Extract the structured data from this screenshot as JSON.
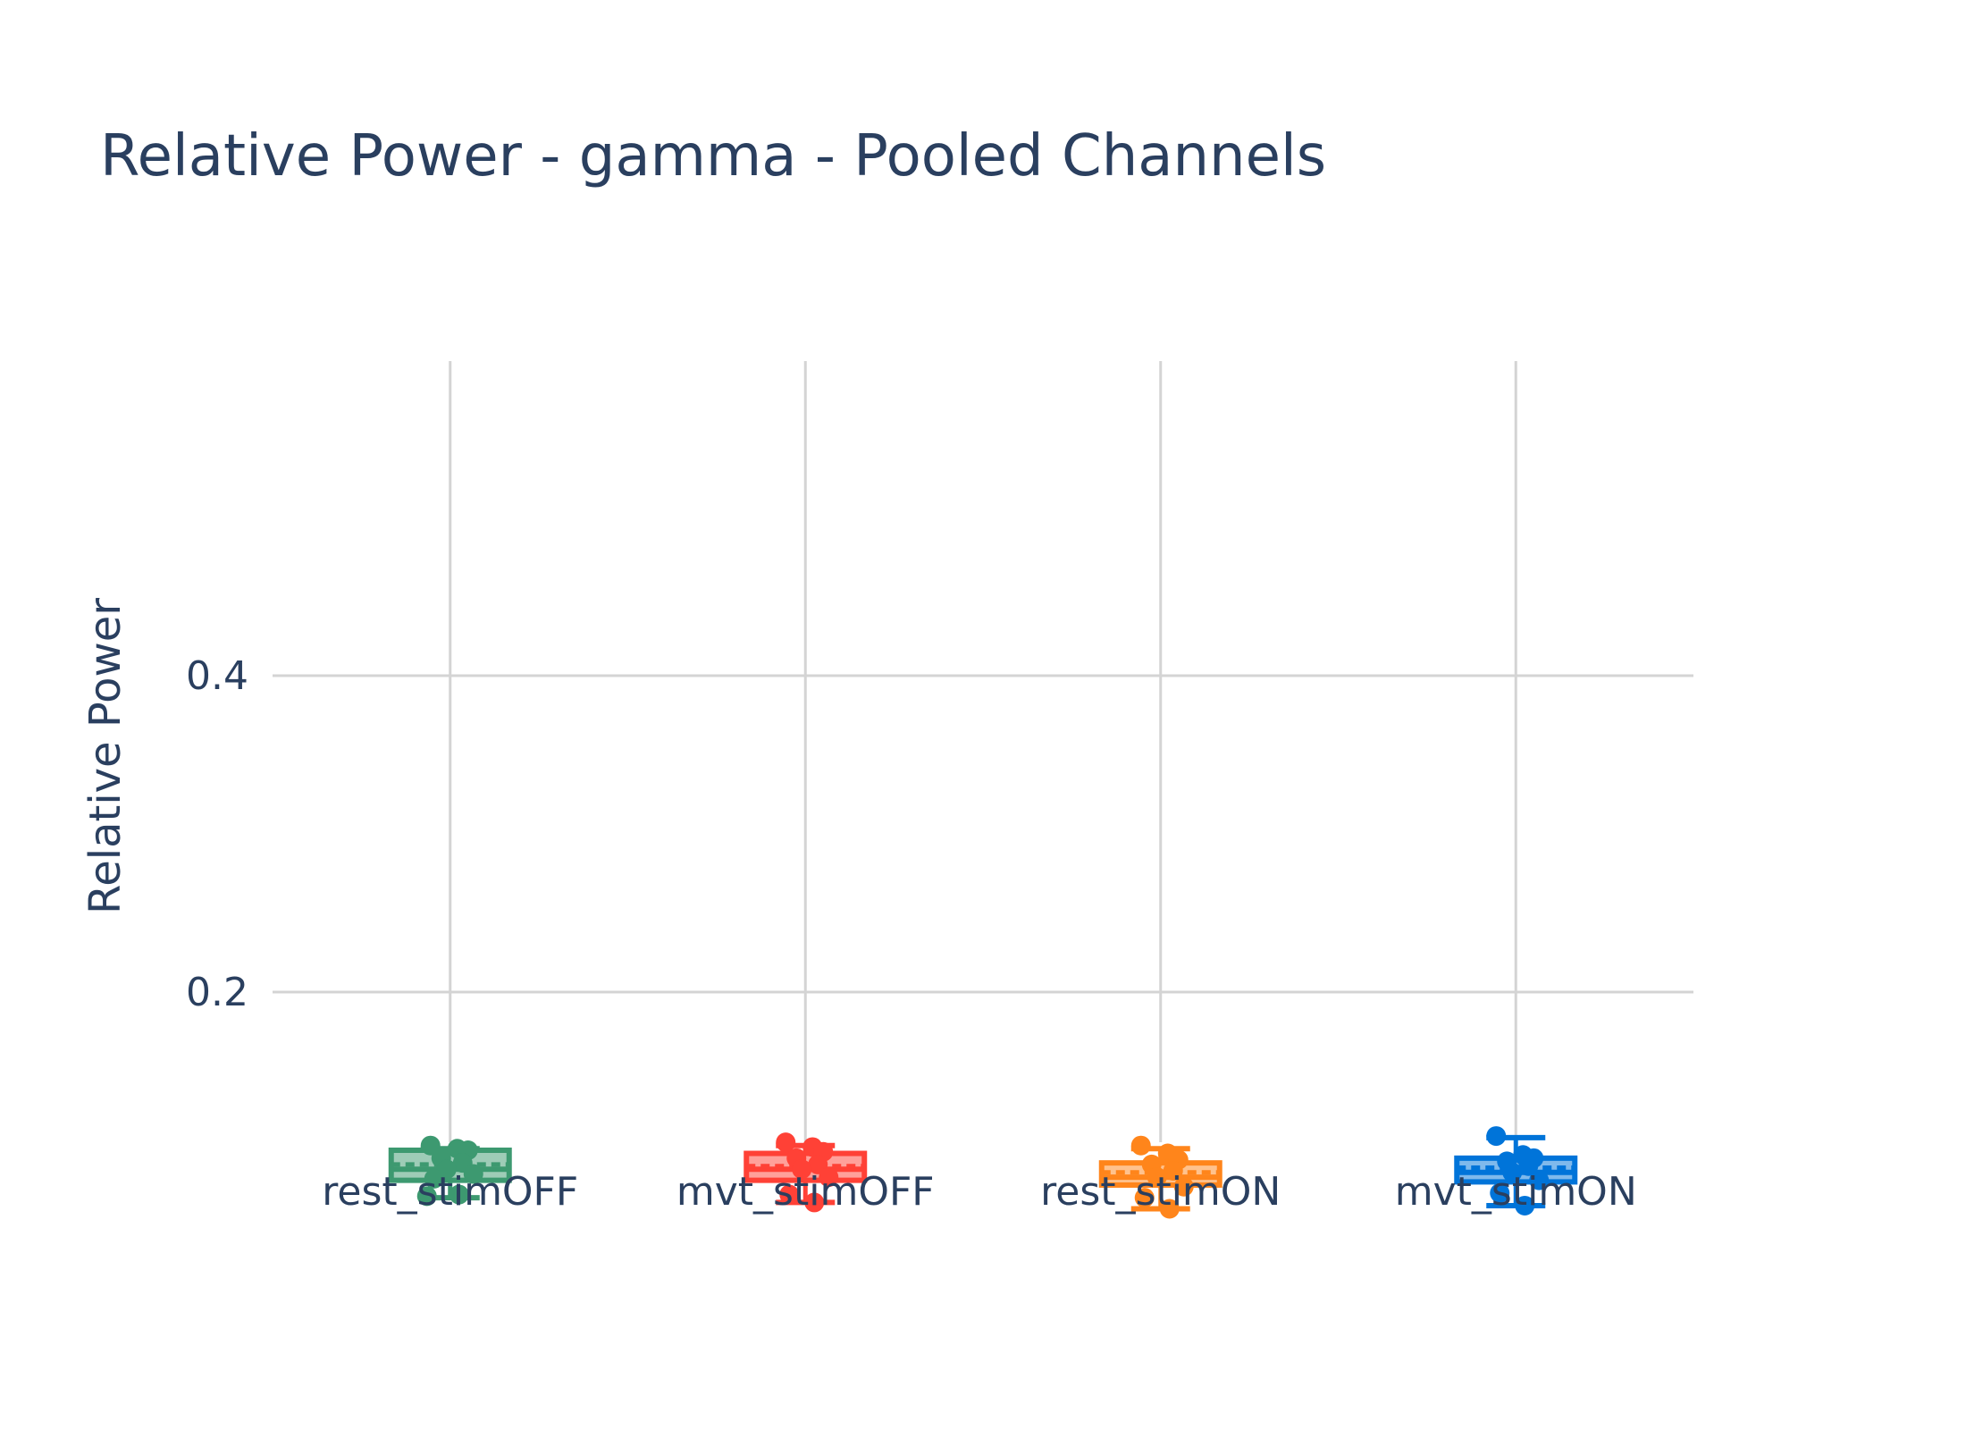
{
  "chart_data": {
    "type": "box",
    "title": "Relative Power - gamma - Pooled Channels",
    "xlabel": "",
    "ylabel": "Relative Power",
    "ylim": [
      -0.0,
      0.5
    ],
    "yticks": [
      0.2,
      0.4
    ],
    "ytick_labels": [
      "0.2",
      "0.4"
    ],
    "grid": true,
    "legend": "none",
    "categories": [
      "rest_stimOFF",
      "mvt_stimOFF",
      "rest_stimON",
      "mvt_stimON"
    ],
    "series": [
      {
        "category": "rest_stimOFF",
        "color": "#3d9970",
        "q1": 0.081,
        "median": 0.088,
        "q3": 0.1,
        "mean": 0.091,
        "whisker_low": 0.07,
        "whisker_high": 0.101,
        "points": [
          0.103,
          0.101,
          0.1,
          0.095,
          0.092,
          0.088,
          0.085,
          0.082,
          0.072,
          0.071
        ]
      },
      {
        "category": "mvt_stimOFF",
        "color": "#ff4136",
        "q1": 0.081,
        "median": 0.088,
        "q3": 0.098,
        "mean": 0.09,
        "whisker_low": 0.067,
        "whisker_high": 0.103,
        "points": [
          0.105,
          0.102,
          0.099,
          0.095,
          0.091,
          0.088,
          0.083,
          0.072,
          0.067
        ]
      },
      {
        "category": "rest_stimON",
        "color": "#ff851b",
        "q1": 0.078,
        "median": 0.083,
        "q3": 0.092,
        "mean": 0.086,
        "whisker_low": 0.063,
        "whisker_high": 0.101,
        "points": [
          0.103,
          0.098,
          0.094,
          0.091,
          0.087,
          0.083,
          0.077,
          0.07,
          0.063
        ]
      },
      {
        "category": "mvt_stimON",
        "color": "#0074d9",
        "q1": 0.08,
        "median": 0.086,
        "q3": 0.095,
        "mean": 0.089,
        "whisker_low": 0.065,
        "whisker_high": 0.108,
        "points": [
          0.109,
          0.097,
          0.095,
          0.093,
          0.09,
          0.086,
          0.081,
          0.073,
          0.065
        ]
      }
    ]
  }
}
